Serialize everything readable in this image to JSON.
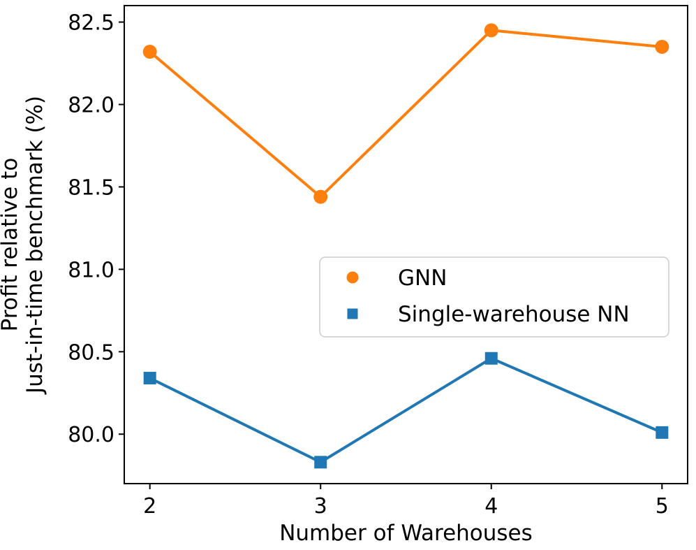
{
  "figure": {
    "background": "#ffffff",
    "axis_color": "#000000"
  },
  "chart_data": {
    "type": "line",
    "title": "",
    "xlabel": "Number of Warehouses",
    "ylabel_lines": [
      "Profit relative to",
      "Just-in-time benchmark (%)"
    ],
    "x": [
      2,
      3,
      4,
      5
    ],
    "series": [
      {
        "name": "GNN",
        "marker": "circle",
        "color": "#ff7f0e",
        "values": [
          82.32,
          81.44,
          82.45,
          82.35
        ]
      },
      {
        "name": "Single-warehouse NN",
        "marker": "square",
        "color": "#1f77b4",
        "values": [
          80.34,
          79.83,
          80.46,
          80.01
        ]
      }
    ],
    "xlim": [
      1.85,
      5.15
    ],
    "ylim": [
      79.7,
      82.6
    ],
    "xticks": [
      2,
      3,
      4,
      5
    ],
    "xtick_labels": [
      "2",
      "3",
      "4",
      "5"
    ],
    "yticks": [
      82.5,
      82.0,
      81.5,
      81.0,
      80.5,
      80.0
    ],
    "ytick_labels": [
      "82.5",
      "82.0",
      "81.5",
      "81.0",
      "80.5",
      "80.0"
    ],
    "grid": false,
    "legend": {
      "position": "center-right",
      "border_color": "#cccccc",
      "background": "#ffffff",
      "entries": [
        "GNN",
        "Single-warehouse NN"
      ]
    }
  }
}
